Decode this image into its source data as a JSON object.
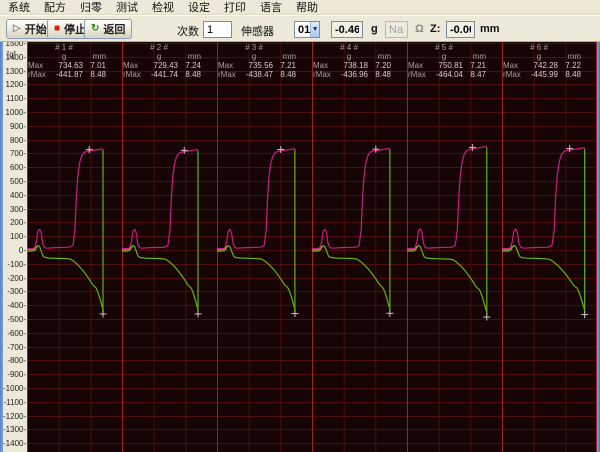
{
  "menu": {
    "items": [
      "系统",
      "配方",
      "归零",
      "测试",
      "检视",
      "设定",
      "打印",
      "语言",
      "帮助"
    ]
  },
  "toolbar": {
    "start_label": "开始",
    "stop_label": "停止",
    "return_label": "返回",
    "count_label": "次数",
    "count_value": "1",
    "sensor_label": "伸感器",
    "sensor_value": "01",
    "force_value": "-0.46",
    "force_unit": "g",
    "resistance_value": "NaN",
    "resistance_unit": "Ω",
    "z_label": "Z:",
    "z_value": "-0.00",
    "z_unit": "mm"
  },
  "chart_data": {
    "type": "line",
    "description": "Six repeated force-test cycles; magenta = forward force (g), green = return force (g), orange = overlapped start segment; '+' marks Max and rMax points",
    "y_axis": {
      "max": 1500,
      "min": -1400,
      "step": 100,
      "unit": "[g]"
    },
    "grid": true,
    "legend": false,
    "labels": {
      "row_max": "Max",
      "row_rmax": "rMax",
      "col_force": "g",
      "col_disp": "mm"
    },
    "panels": [
      {
        "title": "# 1 #",
        "max_g": "734.63",
        "max_mm": "7.01",
        "rmax_g": "-441.87",
        "rmax_mm": "8.48",
        "end_frac": 0.8
      },
      {
        "title": "# 2 #",
        "max_g": "729.43",
        "max_mm": "7.24",
        "rmax_g": "-441.74",
        "rmax_mm": "8.48",
        "end_frac": 0.8
      },
      {
        "title": "# 3 #",
        "max_g": "735.56",
        "max_mm": "7.21",
        "rmax_g": "-438.47",
        "rmax_mm": "8.48",
        "end_frac": 0.82
      },
      {
        "title": "# 4 #",
        "max_g": "738.18",
        "max_mm": "7.20",
        "rmax_g": "-436.96",
        "rmax_mm": "8.48",
        "end_frac": 0.82
      },
      {
        "title": "# 5 #",
        "max_g": "750.81",
        "max_mm": "7.21",
        "rmax_g": "-464.04",
        "rmax_mm": "8.47",
        "end_frac": 0.84
      },
      {
        "title": "# 6 #",
        "max_g": "742.28",
        "max_mm": "7.22",
        "rmax_g": "-445.99",
        "rmax_mm": "8.48",
        "end_frac": 0.87
      }
    ],
    "series_shape": {
      "force": [
        [
          0.0,
          10
        ],
        [
          0.055,
          10
        ],
        [
          0.08,
          14
        ],
        [
          0.1,
          60
        ],
        [
          0.115,
          135
        ],
        [
          0.135,
          148
        ],
        [
          0.15,
          120
        ],
        [
          0.165,
          45
        ],
        [
          0.185,
          16
        ],
        [
          0.22,
          13
        ],
        [
          0.3,
          17
        ],
        [
          0.42,
          19
        ],
        [
          0.46,
          22
        ],
        [
          0.485,
          35
        ],
        [
          0.505,
          150
        ],
        [
          0.52,
          380
        ],
        [
          0.535,
          530
        ],
        [
          0.555,
          625
        ],
        [
          0.575,
          672
        ],
        [
          0.6,
          696
        ],
        [
          0.64,
          706
        ],
        [
          0.7,
          711
        ],
        [
          0.76,
          718
        ],
        [
          0.8,
          724
        ]
      ],
      "return": [
        [
          0.0,
          -8
        ],
        [
          0.055,
          -8
        ],
        [
          0.08,
          -4
        ],
        [
          0.1,
          18
        ],
        [
          0.115,
          33
        ],
        [
          0.135,
          22
        ],
        [
          0.155,
          -18
        ],
        [
          0.17,
          -45
        ],
        [
          0.19,
          -54
        ],
        [
          0.24,
          -58
        ],
        [
          0.32,
          -60
        ],
        [
          0.42,
          -62
        ],
        [
          0.46,
          -66
        ],
        [
          0.5,
          -85
        ],
        [
          0.54,
          -110
        ],
        [
          0.58,
          -140
        ],
        [
          0.62,
          -175
        ],
        [
          0.66,
          -215
        ],
        [
          0.69,
          -248
        ],
        [
          0.71,
          -262
        ],
        [
          0.725,
          -270
        ],
        [
          0.74,
          -292
        ],
        [
          0.755,
          -320
        ],
        [
          0.77,
          -355
        ],
        [
          0.785,
          -392
        ],
        [
          0.795,
          -415
        ],
        [
          0.8,
          -428
        ]
      ],
      "start": [
        [
          0.0,
          2
        ],
        [
          0.06,
          2
        ],
        [
          0.085,
          8
        ],
        [
          0.1,
          28
        ]
      ]
    },
    "colors": {
      "plot_bg": "#170404",
      "grid_minor": "#4c0e0e",
      "grid_major": "#9e2222",
      "curve_force": "#c81d86",
      "curve_return": "#62b414",
      "curve_start": "#b8802a",
      "marker_top": "#dcb8d4",
      "marker_bottom": "#c9c9c9"
    }
  },
  "icons": {
    "start": "▷",
    "stop": "■",
    "return": "↻"
  },
  "accent": {
    "stop_icon": "#dd2200",
    "return_icon": "#2a8a2a",
    "start_icon": "#8a8a8a"
  }
}
